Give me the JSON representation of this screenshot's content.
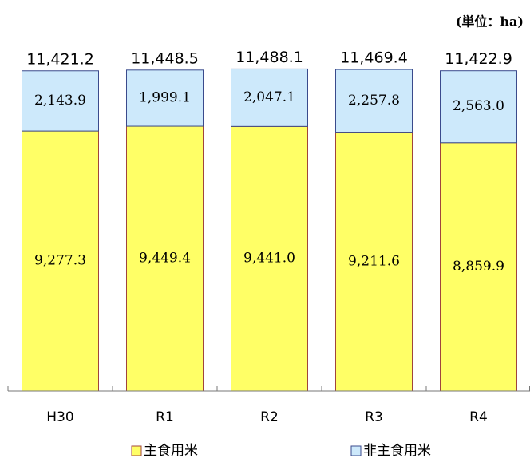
{
  "chart_data": {
    "type": "stacked_bar",
    "unit_label": "(単位：ha)",
    "categories": [
      "H30",
      "R1",
      "R2",
      "R3",
      "R4"
    ],
    "series": [
      {
        "name": "主食用米",
        "color": "#ffff66",
        "edge": "#a0443c",
        "values": [
          9277.3,
          9449.4,
          9441.0,
          9211.6,
          8859.9
        ],
        "value_labels": [
          "9,277.3",
          "9,449.4",
          "9,441.0",
          "9,211.6",
          "8,859.9"
        ]
      },
      {
        "name": "非主食用米",
        "color": "#cde9fb",
        "edge": "#3a4a8c",
        "values": [
          2143.9,
          1999.1,
          2047.1,
          2257.8,
          2563.0
        ],
        "value_labels": [
          "2,143.9",
          "1,999.1",
          "2,047.1",
          "2,257.8",
          "2,563.0"
        ]
      }
    ],
    "totals": {
      "values": [
        11421.2,
        11448.5,
        11488.1,
        11469.4,
        11422.9
      ],
      "value_labels": [
        "11,421.2",
        "11,448.5",
        "11,488.1",
        "11,469.4",
        "11,422.9"
      ]
    },
    "ylim": [
      0,
      11500
    ]
  }
}
